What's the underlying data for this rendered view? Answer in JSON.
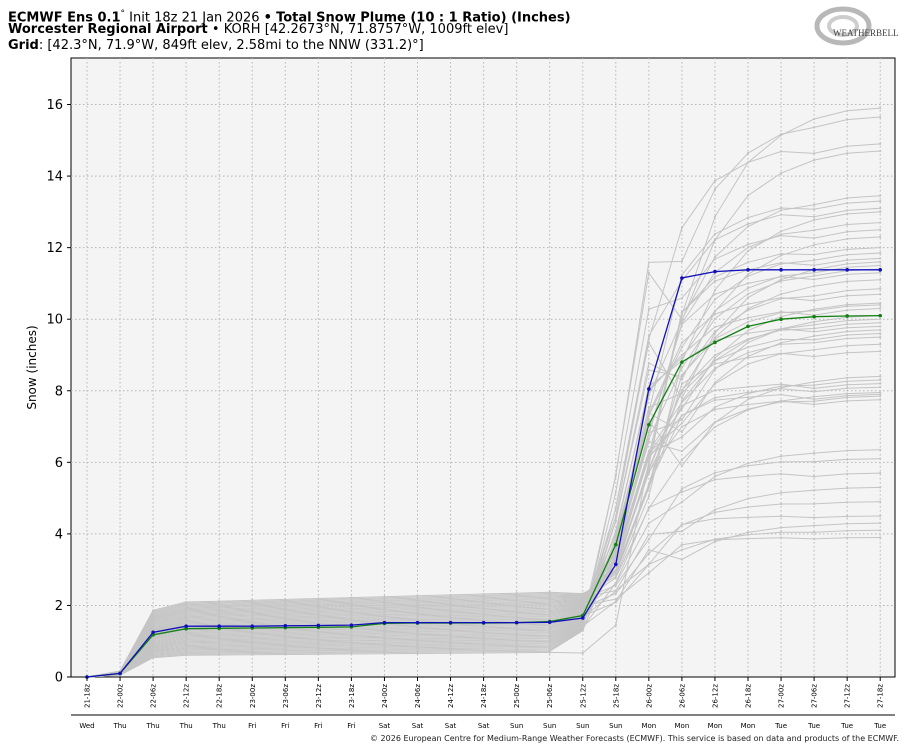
{
  "header": {
    "line1_model": "ECMWF Ens 0.1",
    "line1_deg": "°",
    "line1_init": "Init 18z 21 Jan 2026",
    "line1_sep": "•",
    "line1_title": "Total Snow Plume (10 : 1 Ratio) (Inches)",
    "line2_station": "Worcester Regional Airport",
    "line2_rest": "• KORH [42.2673°N, 71.8757°W, 1009ft elev]",
    "line3_label": "Grid",
    "line3_rest": ": [42.3°N, 71.9°W, 849ft elev, 2.58mi to the NNW (331.2)°]"
  },
  "logo": {
    "text": "WEATHERBELL",
    "icon": "weatherbell-swirl-logo"
  },
  "footer": "© 2026 European Centre for Medium-Range Weather Forecasts (ECMWF). This service is based on data and products of the ECMWF.",
  "colors": {
    "members": "#c4c4c4",
    "mean": "#138013",
    "control": "#1010b8",
    "plot_bg": "#f4f4f4"
  },
  "chart_data": {
    "type": "line",
    "title": "Total Snow Plume (10 : 1 Ratio) (Inches)",
    "xlabel": "",
    "ylabel": "Snow (inches)",
    "ylim": [
      0,
      17.3
    ],
    "yticks": [
      0,
      2,
      4,
      6,
      8,
      10,
      12,
      14,
      16
    ],
    "grid": true,
    "x": [
      "21-18z",
      "22-00z",
      "22-06z",
      "22-12z",
      "22-18z",
      "23-00z",
      "23-06z",
      "23-12z",
      "23-18z",
      "24-00z",
      "24-06z",
      "24-12z",
      "24-18z",
      "25-00z",
      "25-06z",
      "25-12z",
      "25-18z",
      "26-00z",
      "26-06z",
      "26-12z",
      "26-18z",
      "27-00z",
      "27-06z",
      "27-12z",
      "27-18z"
    ],
    "day_labels": [
      "Wed",
      "Thu",
      "Thu",
      "Thu",
      "Thu",
      "Fri",
      "Fri",
      "Fri",
      "Fri",
      "Sat",
      "Sat",
      "Sat",
      "Sat",
      "Sun",
      "Sun",
      "Sun",
      "Sun",
      "Mon",
      "Mon",
      "Mon",
      "Mon",
      "Tue",
      "Tue",
      "Tue",
      "Tue"
    ],
    "series": [
      {
        "role": "control",
        "values": [
          0,
          0.1,
          1.25,
          1.42,
          1.42,
          1.42,
          1.43,
          1.44,
          1.45,
          1.52,
          1.52,
          1.52,
          1.52,
          1.52,
          1.53,
          1.65,
          3.15,
          8.05,
          11.15,
          11.33,
          11.38,
          11.38,
          11.38,
          11.38,
          11.38
        ]
      },
      {
        "role": "mean",
        "values": [
          0,
          0.1,
          1.18,
          1.35,
          1.36,
          1.37,
          1.38,
          1.39,
          1.4,
          1.5,
          1.51,
          1.51,
          1.51,
          1.52,
          1.55,
          1.72,
          3.7,
          7.05,
          8.8,
          9.35,
          9.8,
          10.0,
          10.07,
          10.09,
          10.1
        ]
      }
    ],
    "member_finals": [
      15.9,
      15.65,
      14.9,
      14.7,
      13.45,
      13.1,
      13.0,
      12.7,
      12.5,
      12.3,
      11.85,
      11.7,
      11.6,
      11.5,
      11.3,
      11.1,
      10.85,
      10.7,
      10.45,
      10.4,
      10.3,
      10.1,
      9.9,
      9.8,
      9.7,
      9.5,
      9.1,
      8.4,
      8.3,
      8.1,
      7.95,
      7.85,
      7.75,
      6.35,
      6.1,
      5.7,
      5.3,
      4.9,
      4.5,
      4.3,
      4.1,
      3.9,
      10.0,
      9.6,
      8.2,
      11.4,
      12.0,
      7.9,
      9.3,
      13.3
    ]
  }
}
